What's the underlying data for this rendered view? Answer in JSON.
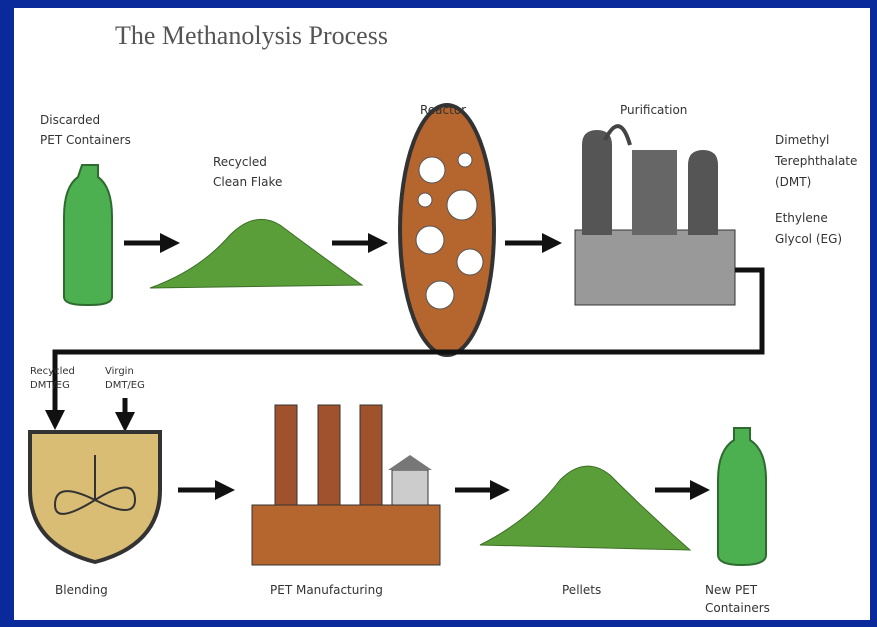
{
  "title": "The Methanolysis Process",
  "nodes": [
    {
      "label": [
        "Discarded",
        "PET Containers"
      ]
    },
    {
      "label": [
        "Recycled",
        "Clean Flake"
      ]
    },
    {
      "label": [
        "Reactor"
      ]
    },
    {
      "label": [
        "Purification"
      ]
    },
    {
      "label": [
        "Dimethyl",
        "Terephthalate",
        "(DMT)"
      ]
    },
    {
      "label": [
        "Ethylene",
        "Glycol (EG)"
      ]
    },
    {
      "label": [
        "Recycled",
        "DMT/EG"
      ]
    },
    {
      "label": [
        "Virgin",
        "DMT/EG"
      ]
    },
    {
      "label": [
        "Blending"
      ]
    },
    {
      "label": [
        "PET Manufacturing"
      ]
    },
    {
      "label": [
        "Pellets"
      ]
    },
    {
      "label": [
        "New PET",
        "Containers"
      ]
    }
  ]
}
